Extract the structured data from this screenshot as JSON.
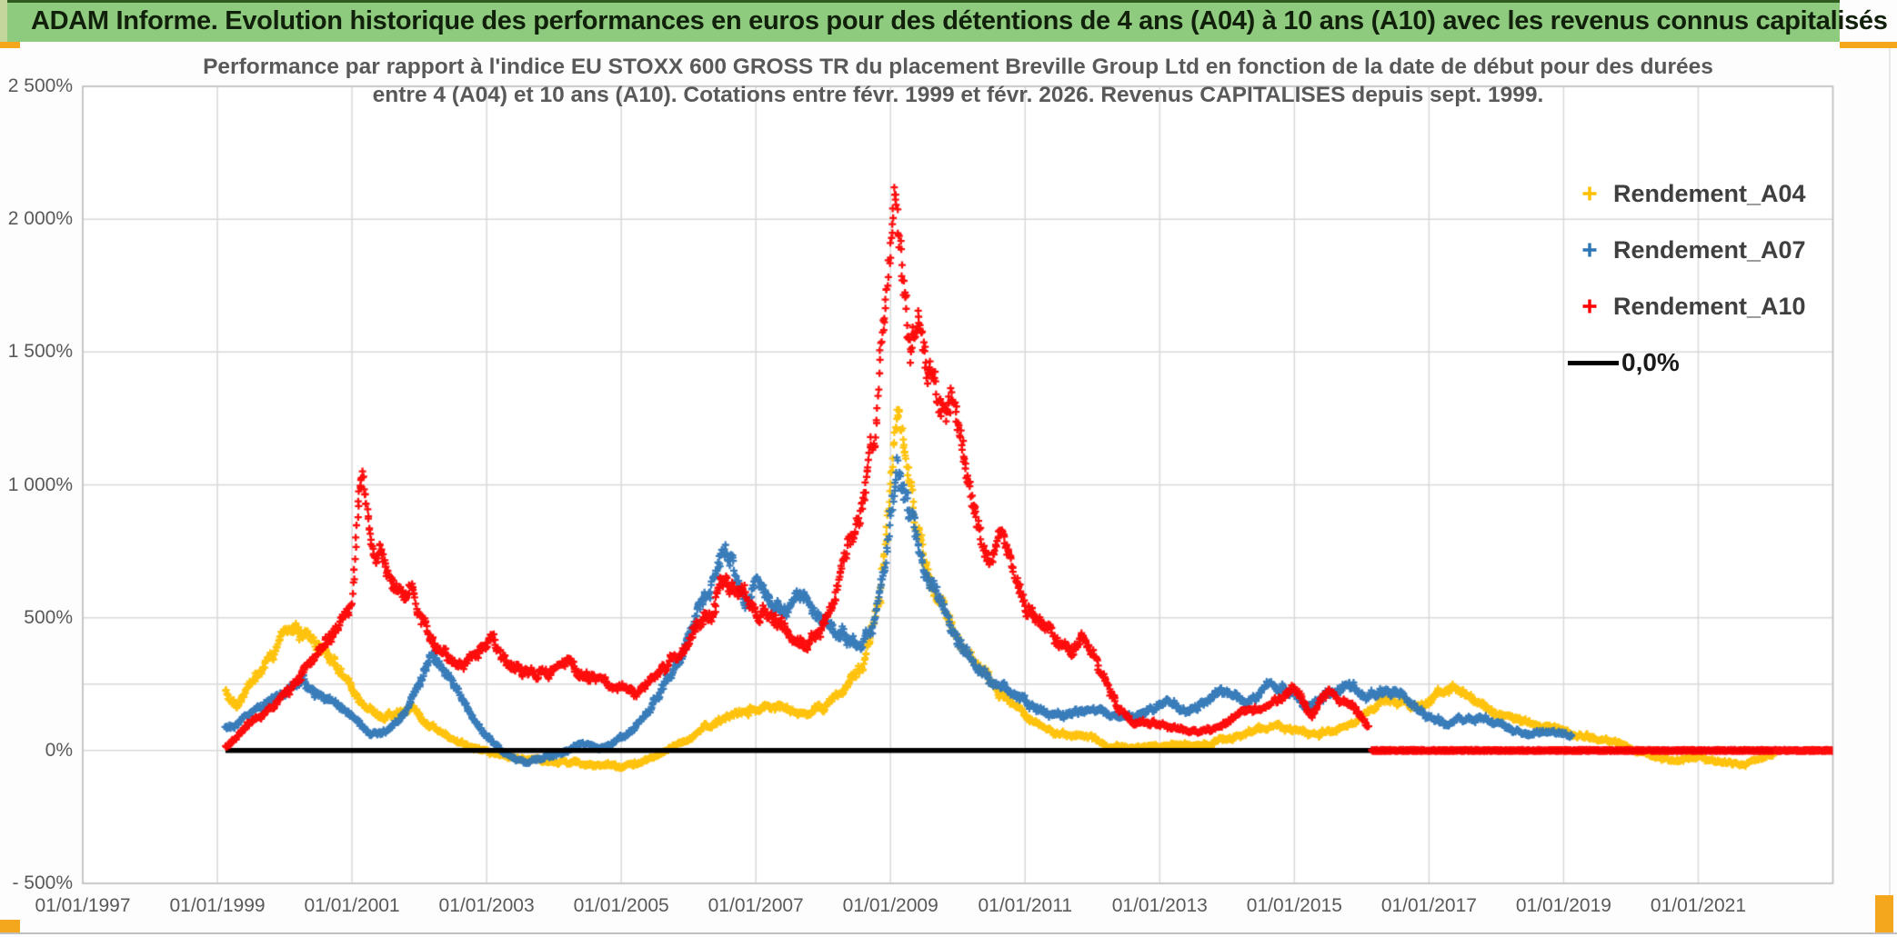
{
  "banner": {
    "text": "ADAM Informe. Evolution historique des performances en euros pour des détentions de 4 ans (A04) à 10 ans (A10) avec les revenus connus capitalisés",
    "bg_color": "#8FCB7E",
    "accent_color": "#F4A71D"
  },
  "chart": {
    "title_line1": "Performance par rapport à l'indice EU STOXX 600 GROSS TR  du placement Breville Group Ltd en fonction de la date de début pour des durées",
    "title_line2": "entre 4 (A04) et 10 ans (A10). Cotations entre févr. 1999 et févr. 2026. Revenus CAPITALISES depuis sept. 1999.",
    "y_axis_labels": [
      "2 500%",
      "2 000%",
      "1 500%",
      "1 000%",
      "500%",
      "0%",
      "- 500%"
    ],
    "x_axis_labels": [
      "01/01/1997",
      "01/01/1999",
      "01/01/2001",
      "01/01/2003",
      "01/01/2005",
      "01/01/2007",
      "01/01/2009",
      "01/01/2011",
      "01/01/2013",
      "01/01/2015",
      "01/01/2017",
      "01/01/2019",
      "01/01/2021"
    ],
    "legend": [
      {
        "label": "Rendement_A04",
        "color": "#FFC000",
        "type": "marker"
      },
      {
        "label": "Rendement_A07",
        "color": "#2E75B6",
        "type": "marker"
      },
      {
        "label": "Rendement_A10",
        "color": "#FF0000",
        "type": "marker"
      },
      {
        "label": "0,0%",
        "color": "#000000",
        "type": "line"
      }
    ]
  },
  "chart_data": {
    "type": "scatter",
    "title": "Performance vs EU STOXX 600 GROSS TR — Breville Group Ltd, holding periods 4 to 10 years",
    "x_unit": "start date (year fraction)",
    "y_unit": "percent",
    "xlim": [
      1997.0,
      2023.0
    ],
    "ylim": [
      -500,
      2500
    ],
    "y_gridline_step": 500,
    "extra_gridline_pct": 250,
    "x_gridline_step_years": 2,
    "grid": true,
    "legend_position": "top-right",
    "marker": "plus",
    "zero_line": {
      "label": "0,0%",
      "color": "#000000",
      "start": 1999.12,
      "end": 2022.12,
      "value": 0
    },
    "series": [
      {
        "name": "Rendement_A04",
        "color": "#FFC000",
        "seed": 11,
        "anchors": [
          [
            1999.12,
            225
          ],
          [
            1999.3,
            160
          ],
          [
            1999.5,
            250
          ],
          [
            1999.75,
            340
          ],
          [
            2000.0,
            430
          ],
          [
            2000.17,
            465
          ],
          [
            2000.35,
            440
          ],
          [
            2000.55,
            400
          ],
          [
            2000.75,
            330
          ],
          [
            2001.0,
            240
          ],
          [
            2001.2,
            160
          ],
          [
            2001.45,
            120
          ],
          [
            2001.7,
            140
          ],
          [
            2001.9,
            160
          ],
          [
            2002.1,
            100
          ],
          [
            2002.4,
            60
          ],
          [
            2002.7,
            20
          ],
          [
            2003.0,
            0
          ],
          [
            2003.4,
            -30
          ],
          [
            2003.8,
            -40
          ],
          [
            2004.2,
            -45
          ],
          [
            2004.6,
            -55
          ],
          [
            2005.0,
            -60
          ],
          [
            2005.4,
            -35
          ],
          [
            2005.8,
            20
          ],
          [
            2006.2,
            75
          ],
          [
            2006.6,
            130
          ],
          [
            2007.0,
            155
          ],
          [
            2007.35,
            180
          ],
          [
            2007.7,
            140
          ],
          [
            2008.0,
            170
          ],
          [
            2008.3,
            220
          ],
          [
            2008.6,
            330
          ],
          [
            2008.85,
            600
          ],
          [
            2009.0,
            950
          ],
          [
            2009.1,
            1330
          ],
          [
            2009.2,
            1150
          ],
          [
            2009.35,
            900
          ],
          [
            2009.5,
            700
          ],
          [
            2009.7,
            560
          ],
          [
            2009.9,
            470
          ],
          [
            2010.1,
            380
          ],
          [
            2010.35,
            300
          ],
          [
            2010.6,
            220
          ],
          [
            2010.85,
            160
          ],
          [
            2011.1,
            110
          ],
          [
            2011.4,
            75
          ],
          [
            2011.7,
            60
          ],
          [
            2012.0,
            45
          ],
          [
            2012.3,
            20
          ],
          [
            2012.6,
            5
          ],
          [
            2012.9,
            15
          ],
          [
            2013.2,
            25
          ],
          [
            2013.5,
            10
          ],
          [
            2013.8,
            30
          ],
          [
            2014.1,
            50
          ],
          [
            2014.4,
            75
          ],
          [
            2014.7,
            90
          ],
          [
            2015.0,
            85
          ],
          [
            2015.3,
            60
          ],
          [
            2015.6,
            75
          ],
          [
            2015.9,
            110
          ],
          [
            2016.2,
            170
          ],
          [
            2016.5,
            200
          ],
          [
            2016.8,
            160
          ],
          [
            2017.1,
            210
          ],
          [
            2017.4,
            230
          ],
          [
            2017.7,
            180
          ],
          [
            2018.0,
            150
          ],
          [
            2018.3,
            130
          ],
          [
            2018.6,
            100
          ],
          [
            2018.9,
            80
          ],
          [
            2019.2,
            60
          ],
          [
            2019.5,
            45
          ],
          [
            2019.8,
            25
          ],
          [
            2020.1,
            0
          ],
          [
            2020.4,
            -30
          ],
          [
            2020.7,
            -40
          ],
          [
            2021.0,
            -30
          ],
          [
            2021.3,
            -40
          ],
          [
            2021.6,
            -50
          ],
          [
            2021.9,
            -30
          ],
          [
            2022.12,
            -15
          ]
        ]
      },
      {
        "name": "Rendement_A07",
        "color": "#2E75B6",
        "seed": 22,
        "anchors": [
          [
            1999.12,
            90
          ],
          [
            1999.4,
            130
          ],
          [
            1999.7,
            170
          ],
          [
            2000.0,
            215
          ],
          [
            2000.25,
            255
          ],
          [
            2000.5,
            215
          ],
          [
            2000.75,
            170
          ],
          [
            2001.0,
            120
          ],
          [
            2001.25,
            70
          ],
          [
            2001.5,
            60
          ],
          [
            2001.75,
            130
          ],
          [
            2002.0,
            240
          ],
          [
            2002.2,
            385
          ],
          [
            2002.4,
            310
          ],
          [
            2002.65,
            180
          ],
          [
            2002.9,
            90
          ],
          [
            2003.1,
            30
          ],
          [
            2003.35,
            -25
          ],
          [
            2003.6,
            -45
          ],
          [
            2003.85,
            -30
          ],
          [
            2004.1,
            -10
          ],
          [
            2004.4,
            25
          ],
          [
            2004.7,
            10
          ],
          [
            2005.0,
            45
          ],
          [
            2005.3,
            110
          ],
          [
            2005.6,
            230
          ],
          [
            2005.9,
            360
          ],
          [
            2006.1,
            480
          ],
          [
            2006.3,
            600
          ],
          [
            2006.5,
            760
          ],
          [
            2006.65,
            720
          ],
          [
            2006.85,
            540
          ],
          [
            2007.0,
            620
          ],
          [
            2007.2,
            560
          ],
          [
            2007.45,
            500
          ],
          [
            2007.65,
            590
          ],
          [
            2007.85,
            540
          ],
          [
            2008.05,
            490
          ],
          [
            2008.3,
            430
          ],
          [
            2008.55,
            380
          ],
          [
            2008.75,
            470
          ],
          [
            2008.95,
            750
          ],
          [
            2009.1,
            1120
          ],
          [
            2009.25,
            950
          ],
          [
            2009.4,
            780
          ],
          [
            2009.6,
            620
          ],
          [
            2009.8,
            520
          ],
          [
            2010.0,
            420
          ],
          [
            2010.25,
            330
          ],
          [
            2010.5,
            270
          ],
          [
            2010.75,
            220
          ],
          [
            2011.0,
            185
          ],
          [
            2011.3,
            150
          ],
          [
            2011.6,
            130
          ],
          [
            2011.9,
            155
          ],
          [
            2012.2,
            140
          ],
          [
            2012.5,
            125
          ],
          [
            2012.8,
            145
          ],
          [
            2013.1,
            180
          ],
          [
            2013.4,
            150
          ],
          [
            2013.7,
            190
          ],
          [
            2014.0,
            225
          ],
          [
            2014.3,
            180
          ],
          [
            2014.6,
            240
          ],
          [
            2014.9,
            230
          ],
          [
            2015.2,
            165
          ],
          [
            2015.5,
            215
          ],
          [
            2015.8,
            250
          ],
          [
            2016.1,
            200
          ],
          [
            2016.4,
            230
          ],
          [
            2016.7,
            190
          ],
          [
            2017.0,
            130
          ],
          [
            2017.3,
            95
          ],
          [
            2017.6,
            125
          ],
          [
            2017.9,
            110
          ],
          [
            2018.2,
            85
          ],
          [
            2018.5,
            60
          ],
          [
            2018.8,
            70
          ],
          [
            2019.12,
            55
          ]
        ]
      },
      {
        "name": "Rendement_A10",
        "color": "#FF0000",
        "seed": 33,
        "anchors": [
          [
            1999.12,
            15
          ],
          [
            1999.35,
            60
          ],
          [
            1999.6,
            120
          ],
          [
            1999.85,
            180
          ],
          [
            2000.1,
            240
          ],
          [
            2000.35,
            320
          ],
          [
            2000.6,
            400
          ],
          [
            2000.85,
            480
          ],
          [
            2001.0,
            560
          ],
          [
            2001.1,
            900
          ],
          [
            2001.15,
            1040
          ],
          [
            2001.25,
            840
          ],
          [
            2001.35,
            700
          ],
          [
            2001.45,
            780
          ],
          [
            2001.6,
            640
          ],
          [
            2001.75,
            570
          ],
          [
            2001.9,
            610
          ],
          [
            2002.05,
            480
          ],
          [
            2002.25,
            400
          ],
          [
            2002.45,
            350
          ],
          [
            2002.65,
            320
          ],
          [
            2002.85,
            380
          ],
          [
            2003.05,
            410
          ],
          [
            2003.3,
            340
          ],
          [
            2003.6,
            300
          ],
          [
            2003.9,
            285
          ],
          [
            2004.2,
            330
          ],
          [
            2004.5,
            285
          ],
          [
            2004.8,
            250
          ],
          [
            2005.05,
            225
          ],
          [
            2005.25,
            215
          ],
          [
            2005.5,
            280
          ],
          [
            2005.75,
            340
          ],
          [
            2006.0,
            400
          ],
          [
            2006.3,
            500
          ],
          [
            2006.55,
            640
          ],
          [
            2006.75,
            620
          ],
          [
            2006.95,
            560
          ],
          [
            2007.15,
            510
          ],
          [
            2007.35,
            460
          ],
          [
            2007.55,
            420
          ],
          [
            2007.75,
            390
          ],
          [
            2007.95,
            460
          ],
          [
            2008.15,
            560
          ],
          [
            2008.35,
            720
          ],
          [
            2008.6,
            950
          ],
          [
            2008.8,
            1250
          ],
          [
            2008.95,
            1700
          ],
          [
            2009.08,
            2130
          ],
          [
            2009.2,
            1780
          ],
          [
            2009.3,
            1520
          ],
          [
            2009.45,
            1660
          ],
          [
            2009.6,
            1420
          ],
          [
            2009.75,
            1260
          ],
          [
            2009.9,
            1320
          ],
          [
            2010.05,
            1130
          ],
          [
            2010.2,
            950
          ],
          [
            2010.35,
            780
          ],
          [
            2010.5,
            720
          ],
          [
            2010.65,
            830
          ],
          [
            2010.8,
            700
          ],
          [
            2010.95,
            600
          ],
          [
            2011.1,
            520
          ],
          [
            2011.3,
            470
          ],
          [
            2011.5,
            400
          ],
          [
            2011.7,
            380
          ],
          [
            2011.85,
            420
          ],
          [
            2012.0,
            350
          ],
          [
            2012.2,
            260
          ],
          [
            2012.4,
            160
          ],
          [
            2012.6,
            100
          ],
          [
            2012.8,
            95
          ],
          [
            2013.0,
            105
          ],
          [
            2013.3,
            75
          ],
          [
            2013.6,
            65
          ],
          [
            2013.9,
            90
          ],
          [
            2014.2,
            140
          ],
          [
            2014.5,
            165
          ],
          [
            2014.8,
            200
          ],
          [
            2015.0,
            230
          ],
          [
            2015.25,
            140
          ],
          [
            2015.5,
            225
          ],
          [
            2015.7,
            185
          ],
          [
            2015.9,
            155
          ],
          [
            2016.1,
            90
          ]
        ],
        "flat_tail": {
          "start": 2016.15,
          "end": 2023.0,
          "value": 0
        }
      }
    ]
  }
}
